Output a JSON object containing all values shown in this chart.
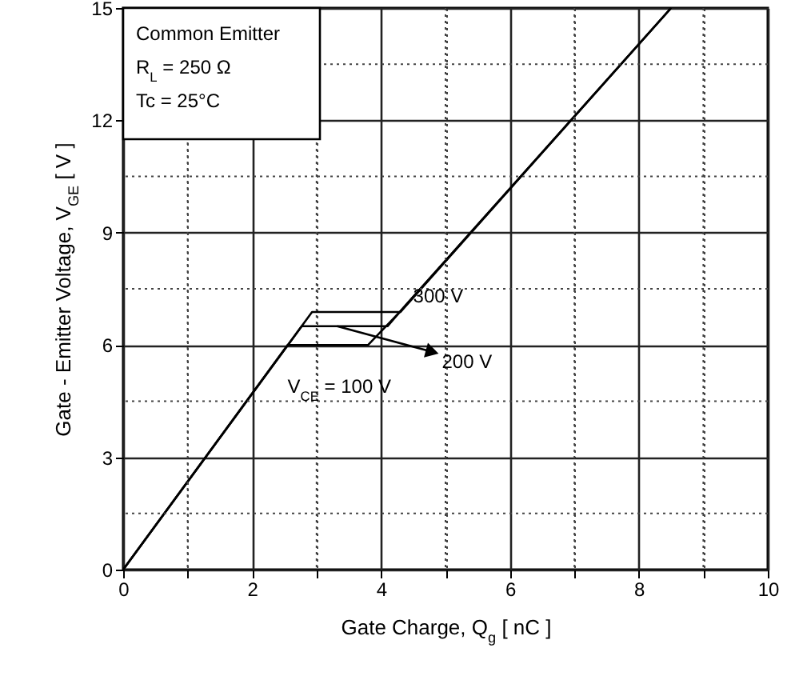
{
  "chart_data": {
    "type": "line",
    "xlabel": "Gate Charge,  Q$_{g}$ [ nC ]",
    "ylabel": "Gate - Emitter Voltage,  V$_{GE}$ [ V ]",
    "series": [
      {
        "name": "V$_{CE}$ = 100 V",
        "color": "#000000",
        "x": [
          0,
          2.55,
          3.8,
          4.3,
          8.5
        ],
        "values": [
          0,
          6.0,
          6.0,
          6.9,
          15
        ]
      },
      {
        "name": "200 V",
        "color": "#000000",
        "x": [
          0,
          2.77,
          4.1,
          4.3,
          8.5
        ],
        "values": [
          0,
          6.5,
          6.5,
          6.9,
          15
        ]
      },
      {
        "name": "300 V",
        "color": "#000000",
        "x": [
          0,
          2.93,
          4.3,
          8.5
        ],
        "values": [
          0,
          6.88,
          6.88,
          15
        ]
      }
    ],
    "xlim": [
      0,
      10
    ],
    "xticks": [
      0,
      {
        "value": 1,
        "label": null
      },
      2,
      {
        "value": 3,
        "label": null
      },
      4,
      {
        "value": 5,
        "label": null
      },
      6,
      {
        "value": 7,
        "label": null
      },
      8,
      {
        "value": 9,
        "label": null
      },
      10
    ],
    "ylim": [
      0,
      15
    ],
    "yticks": [
      0,
      {
        "value": 1.5,
        "label": null
      },
      3,
      {
        "value": 4.5,
        "label": null
      },
      6,
      {
        "value": 7.5,
        "label": null
      },
      9,
      {
        "value": 10.5,
        "label": null
      },
      12,
      {
        "value": 13.5,
        "label": null
      },
      15
    ],
    "grid": true,
    "marker": "none",
    "line_style": "solid",
    "annotations": [
      "Common Emitter",
      "R$_{L}$ = 250 Ω",
      "Tc = 25°C"
    ]
  }
}
